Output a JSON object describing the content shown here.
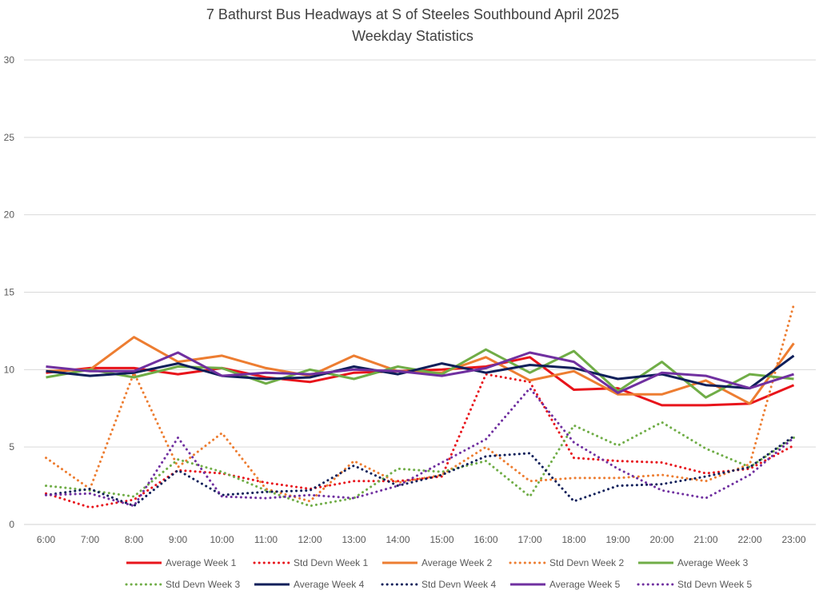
{
  "chart_data": {
    "type": "line",
    "title": "7 Bathurst Bus Headways at S of Steeles Southbound April 2025",
    "subtitle": "Weekday Statistics",
    "xlabel": "",
    "ylabel": "",
    "ylim": [
      0,
      30
    ],
    "yticks": [
      0,
      5,
      10,
      15,
      20,
      25,
      30
    ],
    "grid": true,
    "legend": "bottom",
    "categories": [
      "6:00",
      "7:00",
      "8:00",
      "9:00",
      "10:00",
      "11:00",
      "12:00",
      "13:00",
      "14:00",
      "15:00",
      "16:00",
      "17:00",
      "18:00",
      "19:00",
      "20:00",
      "21:00",
      "22:00",
      "23:00"
    ],
    "series": [
      {
        "name": "Average Week 1",
        "color": "#e8141b",
        "style": "solid",
        "values": [
          9.8,
          10.1,
          10.1,
          9.7,
          10.1,
          9.5,
          9.2,
          9.8,
          9.9,
          10.0,
          10.2,
          10.8,
          8.7,
          8.8,
          7.7,
          7.7,
          7.8,
          9.0
        ]
      },
      {
        "name": "Std Devn Week 1",
        "color": "#e8141b",
        "style": "dotted",
        "values": [
          2.0,
          1.1,
          1.6,
          3.5,
          3.3,
          2.7,
          2.3,
          2.8,
          2.8,
          3.1,
          9.7,
          9.2,
          4.3,
          4.1,
          4.0,
          3.3,
          3.6,
          5.1
        ]
      },
      {
        "name": "Average Week 2",
        "color": "#ed7d31",
        "style": "solid",
        "values": [
          9.9,
          10.0,
          12.1,
          10.5,
          10.9,
          10.1,
          9.6,
          10.9,
          9.9,
          9.8,
          10.8,
          9.3,
          9.9,
          8.4,
          8.4,
          9.3,
          7.8,
          11.7
        ]
      },
      {
        "name": "Std Devn Week 2",
        "color": "#ed7d31",
        "style": "dotted",
        "values": [
          4.3,
          2.3,
          9.8,
          3.7,
          5.9,
          2.3,
          1.5,
          4.1,
          2.7,
          3.2,
          5.0,
          2.8,
          3.0,
          3.0,
          3.2,
          2.8,
          3.9,
          14.2
        ]
      },
      {
        "name": "Average Week 3",
        "color": "#70ad47",
        "style": "solid",
        "values": [
          9.5,
          10.0,
          9.5,
          10.2,
          10.1,
          9.1,
          10.0,
          9.4,
          10.2,
          9.7,
          11.3,
          9.8,
          11.2,
          8.6,
          10.5,
          8.2,
          9.7,
          9.4
        ]
      },
      {
        "name": "Std Devn Week 3",
        "color": "#70ad47",
        "style": "dotted",
        "values": [
          2.5,
          2.2,
          1.8,
          4.2,
          3.4,
          2.2,
          1.2,
          1.7,
          3.6,
          3.4,
          4.1,
          1.8,
          6.4,
          5.1,
          6.6,
          4.9,
          3.7,
          5.6
        ]
      },
      {
        "name": "Average Week 4",
        "color": "#0f1f5a",
        "style": "solid",
        "values": [
          9.9,
          9.6,
          9.8,
          10.4,
          9.6,
          9.4,
          9.5,
          10.2,
          9.7,
          10.4,
          9.8,
          10.3,
          10.1,
          9.4,
          9.7,
          9.0,
          8.8,
          10.9
        ]
      },
      {
        "name": "Std Devn Week 4",
        "color": "#0f1f5a",
        "style": "dotted",
        "values": [
          1.9,
          2.3,
          1.2,
          3.5,
          1.9,
          2.1,
          2.2,
          3.8,
          2.5,
          3.2,
          4.4,
          4.6,
          1.5,
          2.5,
          2.6,
          3.1,
          3.7,
          5.7
        ]
      },
      {
        "name": "Average Week 5",
        "color": "#7030a0",
        "style": "solid",
        "values": [
          10.2,
          9.9,
          9.9,
          11.1,
          9.6,
          9.8,
          9.7,
          10.0,
          9.9,
          9.6,
          10.1,
          11.1,
          10.5,
          8.5,
          9.8,
          9.6,
          8.8,
          9.7
        ]
      },
      {
        "name": "Std Devn Week 5",
        "color": "#7030a0",
        "style": "dotted",
        "values": [
          1.9,
          2.0,
          1.2,
          5.6,
          1.8,
          1.7,
          1.9,
          1.7,
          2.5,
          4.0,
          5.5,
          8.8,
          5.3,
          3.6,
          2.2,
          1.7,
          3.2,
          5.6
        ]
      }
    ]
  }
}
